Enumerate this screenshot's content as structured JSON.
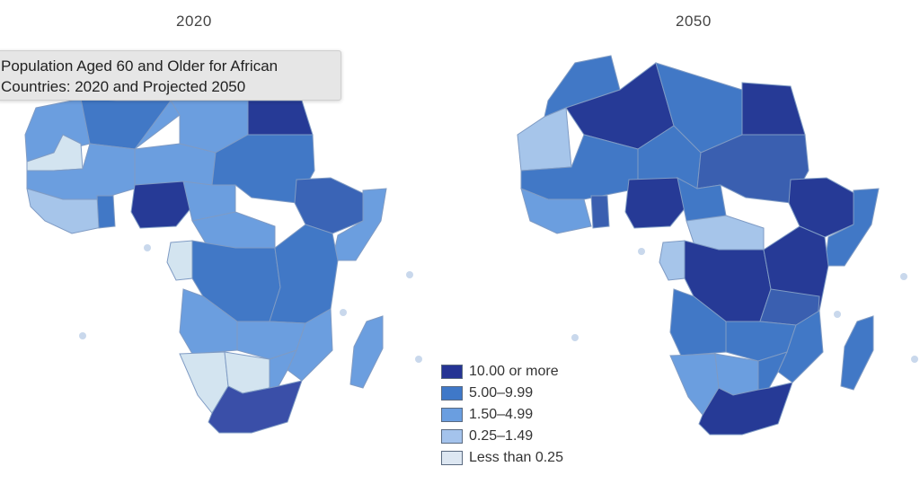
{
  "maps": [
    {
      "title": "2020"
    },
    {
      "title": "2050"
    }
  ],
  "tooltip": {
    "lines": [
      "Population Aged 60 and Older for African",
      "Countries: 2020 and Projected 2050"
    ]
  },
  "legend": [
    {
      "label": "10.00 or more",
      "color": "#253494"
    },
    {
      "label": "5.00–9.99",
      "color": "#3f78c8"
    },
    {
      "label": "1.50–4.99",
      "color": "#6a9ee0"
    },
    {
      "label": "0.25–1.49",
      "color": "#a4c3ec"
    },
    {
      "label": "Less than 0.25",
      "color": "#dde7f2"
    }
  ],
  "colors": {
    "c10": "#263a96",
    "c5": "#4178c6",
    "c15": "#6b9edf",
    "c025": "#a6c5ea",
    "clow": "#d3e4f0",
    "background": "#ffffff"
  }
}
